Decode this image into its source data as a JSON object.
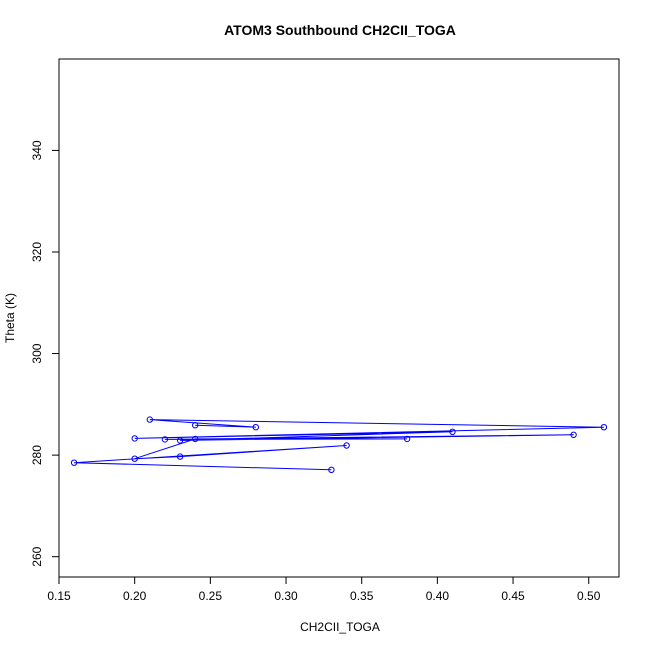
{
  "chart_data": {
    "type": "line",
    "title": "ATOM3 Southbound CH2CII_TOGA",
    "xlabel": "CH2CII_TOGA",
    "ylabel": "Theta (K)",
    "xlim": [
      0.15,
      0.52
    ],
    "ylim": [
      256,
      358
    ],
    "xticks": [
      "0.15",
      "0.20",
      "0.25",
      "0.30",
      "0.35",
      "0.40",
      "0.45",
      "0.50"
    ],
    "yticks": [
      "260",
      "280",
      "300",
      "320",
      "340"
    ],
    "grid": false,
    "legend": "none",
    "colors": {
      "series": "#0000ff",
      "axes": "#000000",
      "background": "#ffffff"
    },
    "series": [
      {
        "marker": "open-circle",
        "x": [
          0.33,
          0.16,
          0.34,
          0.23,
          0.2,
          0.24,
          0.38,
          0.22,
          0.49,
          0.23,
          0.41,
          0.2,
          0.51,
          0.21,
          0.28,
          0.24
        ],
        "y": [
          277.1,
          278.5,
          281.9,
          279.7,
          279.3,
          283.2,
          283.2,
          283.1,
          284.0,
          282.9,
          284.6,
          283.3,
          285.5,
          287.0,
          285.5,
          285.9
        ]
      }
    ]
  }
}
